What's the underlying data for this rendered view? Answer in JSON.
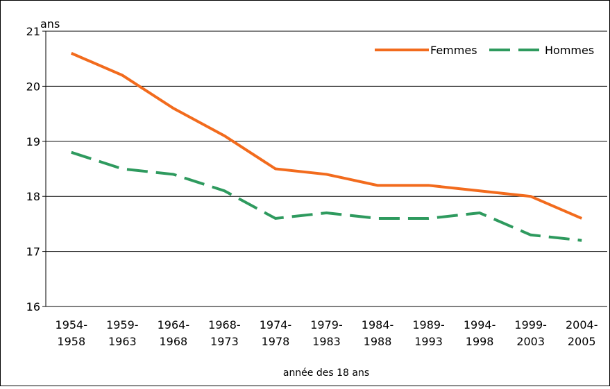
{
  "chart_data": {
    "type": "line",
    "y_unit_label": "ans",
    "x_label": "année des 18 ans",
    "categories": [
      "1954-1958",
      "1959-1963",
      "1964-1968",
      "1968-1973",
      "1974-1978",
      "1979-1983",
      "1984-1988",
      "1989-1993",
      "1994-1998",
      "1999-2003",
      "2004-2005"
    ],
    "series": [
      {
        "name": "Femmes",
        "color": "#f26b1d",
        "dashed": false,
        "values": [
          20.6,
          20.2,
          19.6,
          19.1,
          18.5,
          18.4,
          18.2,
          18.2,
          18.1,
          18.0,
          17.6
        ]
      },
      {
        "name": "Hommes",
        "color": "#2e9a5e",
        "dashed": true,
        "values": [
          18.8,
          18.5,
          18.4,
          18.1,
          17.6,
          17.7,
          17.6,
          17.6,
          17.7,
          17.3,
          17.2
        ]
      }
    ],
    "ylim": [
      16,
      21
    ],
    "yticks": [
      16,
      17,
      18,
      19,
      20,
      21
    ],
    "grid": true,
    "legend": "top-right"
  }
}
